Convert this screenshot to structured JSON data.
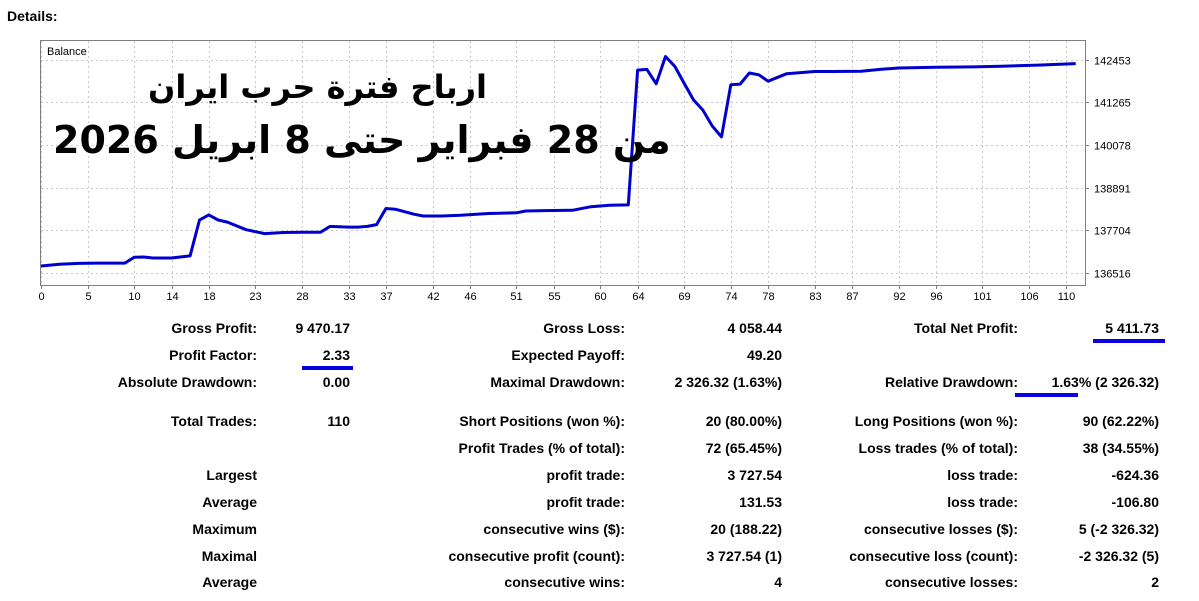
{
  "heading": "Details:",
  "chart_data": {
    "type": "line",
    "title": "Balance",
    "overlay_lines": [
      "ارباح فترة حرب ايران",
      "من 28 فبراير حتى 8 ابريل 2026"
    ],
    "x_ticks": [
      0,
      5,
      10,
      14,
      18,
      23,
      28,
      33,
      37,
      42,
      46,
      51,
      55,
      60,
      64,
      69,
      74,
      78,
      83,
      87,
      92,
      96,
      101,
      106,
      110
    ],
    "y_ticks": [
      136516,
      137704,
      138891,
      140078,
      141265,
      142453
    ],
    "ylim": [
      136180,
      142970
    ],
    "xlim": [
      0,
      112
    ],
    "line_color": "#0000cc",
    "grid": true,
    "series": [
      {
        "x": [
          0,
          2,
          4,
          6,
          9,
          10,
          11,
          12,
          14,
          16,
          17,
          18,
          19,
          20,
          22,
          24,
          26,
          28,
          30,
          31,
          33,
          34,
          35,
          36,
          37,
          38,
          40,
          41,
          43,
          45,
          48,
          51,
          52,
          54,
          57,
          59,
          61,
          63,
          64,
          65,
          66,
          67,
          68,
          69,
          70,
          71,
          72,
          73,
          74,
          75,
          76,
          77,
          78,
          80,
          83,
          85,
          88,
          90,
          92,
          96,
          100,
          103,
          107,
          111
        ],
        "y": [
          136710,
          136760,
          136780,
          136790,
          136790,
          136950,
          136960,
          136930,
          136930,
          136990,
          137990,
          138130,
          137990,
          137930,
          137720,
          137610,
          137640,
          137650,
          137650,
          137810,
          137790,
          137790,
          137810,
          137860,
          138310,
          138290,
          138150,
          138100,
          138100,
          138120,
          138170,
          138190,
          138240,
          138250,
          138260,
          138360,
          138400,
          138410,
          142160,
          142180,
          141780,
          142540,
          142260,
          141790,
          141330,
          141050,
          140610,
          140300,
          141750,
          141770,
          142080,
          142030,
          141850,
          142060,
          142120,
          142120,
          142130,
          142180,
          142220,
          142240,
          142250,
          142270,
          142300,
          142340
        ]
      }
    ]
  },
  "stats": {
    "gross_profit_label": "Gross Profit:",
    "gross_profit_value": "9 470.17",
    "gross_loss_label": "Gross Loss:",
    "gross_loss_value": "4 058.44",
    "total_net_profit_label": "Total Net Profit:",
    "total_net_profit_value": "5 411.73",
    "profit_factor_label": "Profit Factor:",
    "profit_factor_value": "2.33",
    "expected_payoff_label": "Expected Payoff:",
    "expected_payoff_value": "49.20",
    "absolute_drawdown_label": "Absolute Drawdown:",
    "absolute_drawdown_value": "0.00",
    "maximal_drawdown_label": "Maximal Drawdown:",
    "maximal_drawdown_value": "2 326.32 (1.63%)",
    "relative_drawdown_label": "Relative Drawdown:",
    "relative_drawdown_value": "1.63% (2 326.32)",
    "total_trades_label": "Total Trades:",
    "total_trades_value": "110",
    "short_positions_label": "Short Positions (won %):",
    "short_positions_value": "20 (80.00%)",
    "long_positions_label": "Long Positions (won %):",
    "long_positions_value": "90 (62.22%)",
    "profit_trades_label": "Profit Trades (% of total):",
    "profit_trades_value": "72 (65.45%)",
    "loss_trades_label": "Loss trades (% of total):",
    "loss_trades_value": "38 (34.55%)",
    "largest_label": "Largest",
    "largest_profit_label": "profit trade:",
    "largest_profit_value": "3 727.54",
    "largest_loss_label": "loss trade:",
    "largest_loss_value": "-624.36",
    "average_label": "Average",
    "average_profit_label": "profit trade:",
    "average_profit_value": "131.53",
    "average_loss_label": "loss trade:",
    "average_loss_value": "-106.80",
    "maximum_label": "Maximum",
    "max_cons_wins_label": "consecutive wins ($):",
    "max_cons_wins_value": "20 (188.22)",
    "max_cons_losses_label": "consecutive losses ($):",
    "max_cons_losses_value": "5 (-2 326.32)",
    "maximal_label": "Maximal",
    "maximal_cons_profit_label": "consecutive profit (count):",
    "maximal_cons_profit_value": "3 727.54 (1)",
    "maximal_cons_loss_label": "consecutive loss (count):",
    "maximal_cons_loss_value": "-2 326.32 (5)",
    "average2_label": "Average",
    "avg_cons_wins_label": "consecutive wins:",
    "avg_cons_wins_value": "4",
    "avg_cons_losses_label": "consecutive losses:",
    "avg_cons_losses_value": "2"
  },
  "accent_color": "#0a00e6"
}
